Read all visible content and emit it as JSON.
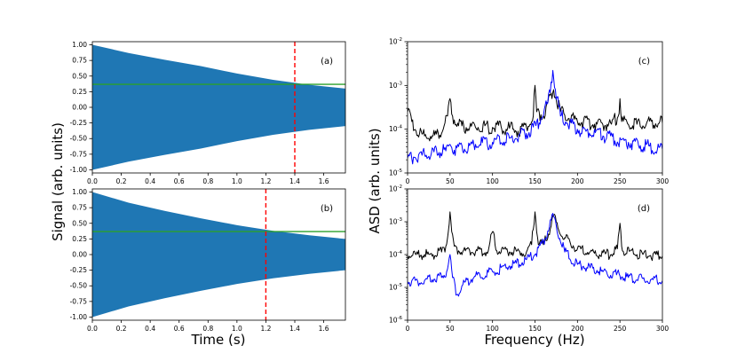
{
  "figure": {
    "time_axis_label": "Time (s)",
    "signal_axis_label": "Signal (arb. units)",
    "frequency_axis_label": "Frequency (Hz)",
    "asd_axis_label": "ASD (arb. units)"
  },
  "chart_data": [
    {
      "id": "a",
      "type": "area",
      "label": "(a)",
      "title": "",
      "xlabel": "",
      "ylabel": "Signal (arb. units)",
      "xlim": [
        0.0,
        1.75
      ],
      "ylim": [
        -1.05,
        1.05
      ],
      "xticks": [
        "0.0",
        "0.2",
        "0.4",
        "0.6",
        "0.8",
        "1.0",
        "1.2",
        "1.4",
        "1.6"
      ],
      "yticks": [
        "1.00",
        "0.75",
        "0.50",
        "0.25",
        "0.00",
        "-0.25",
        "-0.50",
        "-0.75",
        "-1.00"
      ],
      "series": [
        {
          "name": "decaying signal envelope",
          "color": "#1f77b4",
          "x": [
            0.0,
            0.25,
            0.5,
            0.75,
            1.0,
            1.25,
            1.5,
            1.75
          ],
          "upper": [
            1.0,
            0.87,
            0.76,
            0.66,
            0.54,
            0.44,
            0.36,
            0.3
          ],
          "lower": [
            -1.0,
            -0.87,
            -0.76,
            -0.66,
            -0.54,
            -0.44,
            -0.36,
            -0.3
          ]
        }
      ],
      "hlines": [
        {
          "y": 0.368,
          "color": "#2ca02c",
          "name": "1/e level"
        }
      ],
      "vlines": [
        {
          "x": 1.4,
          "color": "#ff0000",
          "style": "dashed",
          "name": "decay time"
        }
      ]
    },
    {
      "id": "b",
      "type": "area",
      "label": "(b)",
      "title": "",
      "xlabel": "Time (s)",
      "ylabel": "Signal (arb. units)",
      "xlim": [
        0.0,
        1.75
      ],
      "ylim": [
        -1.05,
        1.05
      ],
      "xticks": [
        "0.0",
        "0.2",
        "0.4",
        "0.6",
        "0.8",
        "1.0",
        "1.2",
        "1.4",
        "1.6"
      ],
      "yticks": [
        "1.00",
        "0.75",
        "0.50",
        "0.25",
        "0.00",
        "-0.25",
        "-0.50",
        "-0.75",
        "-1.00"
      ],
      "series": [
        {
          "name": "decaying signal envelope",
          "color": "#1f77b4",
          "x": [
            0.0,
            0.25,
            0.5,
            0.75,
            1.0,
            1.25,
            1.5,
            1.75
          ],
          "upper": [
            1.0,
            0.83,
            0.7,
            0.58,
            0.47,
            0.38,
            0.31,
            0.25
          ],
          "lower": [
            -1.0,
            -0.83,
            -0.7,
            -0.58,
            -0.47,
            -0.38,
            -0.31,
            -0.25
          ]
        }
      ],
      "hlines": [
        {
          "y": 0.368,
          "color": "#2ca02c",
          "name": "1/e level"
        }
      ],
      "vlines": [
        {
          "x": 1.2,
          "color": "#ff0000",
          "style": "dashed",
          "name": "decay time"
        }
      ]
    },
    {
      "id": "c",
      "type": "line",
      "label": "(c)",
      "title": "",
      "xlabel": "",
      "ylabel": "ASD (arb. units)",
      "xlim": [
        0,
        300
      ],
      "ylog": true,
      "ylim_exp": [
        -5,
        -2
      ],
      "xticks": [
        "0",
        "50",
        "100",
        "150",
        "200",
        "250",
        "300"
      ],
      "yticks": [
        {
          "base": "10",
          "exp": "-2"
        },
        {
          "base": "10",
          "exp": "-3"
        },
        {
          "base": "10",
          "exp": "-4"
        },
        {
          "base": "10",
          "exp": "-5"
        }
      ],
      "series": [
        {
          "name": "black",
          "color": "#000000",
          "x": [
            0,
            5,
            10,
            20,
            30,
            40,
            47,
            50,
            53,
            60,
            80,
            100,
            120,
            130,
            140,
            148,
            150,
            152,
            160,
            168,
            172,
            180,
            200,
            220,
            240,
            248,
            250,
            252,
            270,
            300
          ],
          "y": [
            0.00025,
            0.00015,
            9e-05,
            7e-05,
            7e-05,
            8e-05,
            0.0002,
            0.0005,
            0.0002,
            0.00012,
            0.00011,
            0.00011,
            0.000105,
            9e-05,
            0.00011,
            0.0002,
            0.001,
            0.00025,
            0.0002,
            0.0006,
            0.0008,
            0.00025,
            0.00015,
            0.00013,
            0.00013,
            0.0002,
            0.0005,
            0.00015,
            0.00013,
            0.00014
          ]
        },
        {
          "name": "blue",
          "color": "#0000ff",
          "x": [
            0,
            20,
            45,
            50,
            55,
            80,
            100,
            120,
            140,
            155,
            165,
            169,
            171,
            174,
            180,
            200,
            230,
            260,
            300
          ],
          "y": [
            2.2e-05,
            2.6e-05,
            3.2e-05,
            4.5e-05,
            3.3e-05,
            4.5e-05,
            5e-05,
            6.2e-05,
            8e-05,
            0.00014,
            0.0004,
            0.0012,
            0.0022,
            0.0008,
            0.0002,
            0.0001,
            7e-05,
            5e-05,
            3.5e-05
          ]
        }
      ]
    },
    {
      "id": "d",
      "type": "line",
      "label": "(d)",
      "title": "",
      "xlabel": "Frequency (Hz)",
      "ylabel": "ASD (arb. units)",
      "xlim": [
        0,
        300
      ],
      "ylog": true,
      "ylim_exp": [
        -6,
        -2
      ],
      "xticks": [
        "0",
        "50",
        "100",
        "150",
        "200",
        "250",
        "300"
      ],
      "yticks": [
        {
          "base": "10",
          "exp": "-2"
        },
        {
          "base": "10",
          "exp": "-3"
        },
        {
          "base": "10",
          "exp": "-4"
        },
        {
          "base": "10",
          "exp": "-5"
        },
        {
          "base": "10",
          "exp": "-6"
        }
      ],
      "series": [
        {
          "name": "black",
          "color": "#000000",
          "x": [
            0,
            10,
            20,
            30,
            40,
            45,
            48,
            50,
            52,
            55,
            60,
            80,
            95,
            100,
            105,
            120,
            140,
            146,
            150,
            154,
            160,
            168,
            172,
            180,
            200,
            220,
            240,
            247,
            250,
            253,
            270,
            300
          ],
          "y": [
            9e-05,
            0.0001,
            0.0001,
            0.0001,
            0.00012,
            0.00018,
            0.0005,
            0.002,
            0.0005,
            0.00018,
            0.00013,
            0.00012,
            0.00013,
            0.0005,
            0.00013,
            0.00012,
            0.00012,
            0.0002,
            0.002,
            0.0002,
            0.0002,
            0.0006,
            0.0016,
            0.0004,
            0.00015,
            0.00011,
            0.0001,
            0.00015,
            0.0009,
            0.00013,
            0.0001,
            9e-05
          ]
        },
        {
          "name": "blue",
          "color": "#0000ff",
          "x": [
            0,
            20,
            40,
            46,
            50,
            53,
            58,
            65,
            80,
            100,
            120,
            140,
            150,
            160,
            167,
            171,
            176,
            185,
            200,
            230,
            260,
            300
          ],
          "y": [
            1.5e-05,
            1.6e-05,
            2e-05,
            3e-05,
            0.0001,
            2e-05,
            6e-06,
            1.2e-05,
            2.2e-05,
            3e-05,
            4.5e-05,
            7e-05,
            0.0001,
            0.00025,
            0.0007,
            0.0018,
            0.0005,
            0.00012,
            5e-05,
            3e-05,
            2e-05,
            1.6e-05
          ]
        }
      ]
    }
  ]
}
